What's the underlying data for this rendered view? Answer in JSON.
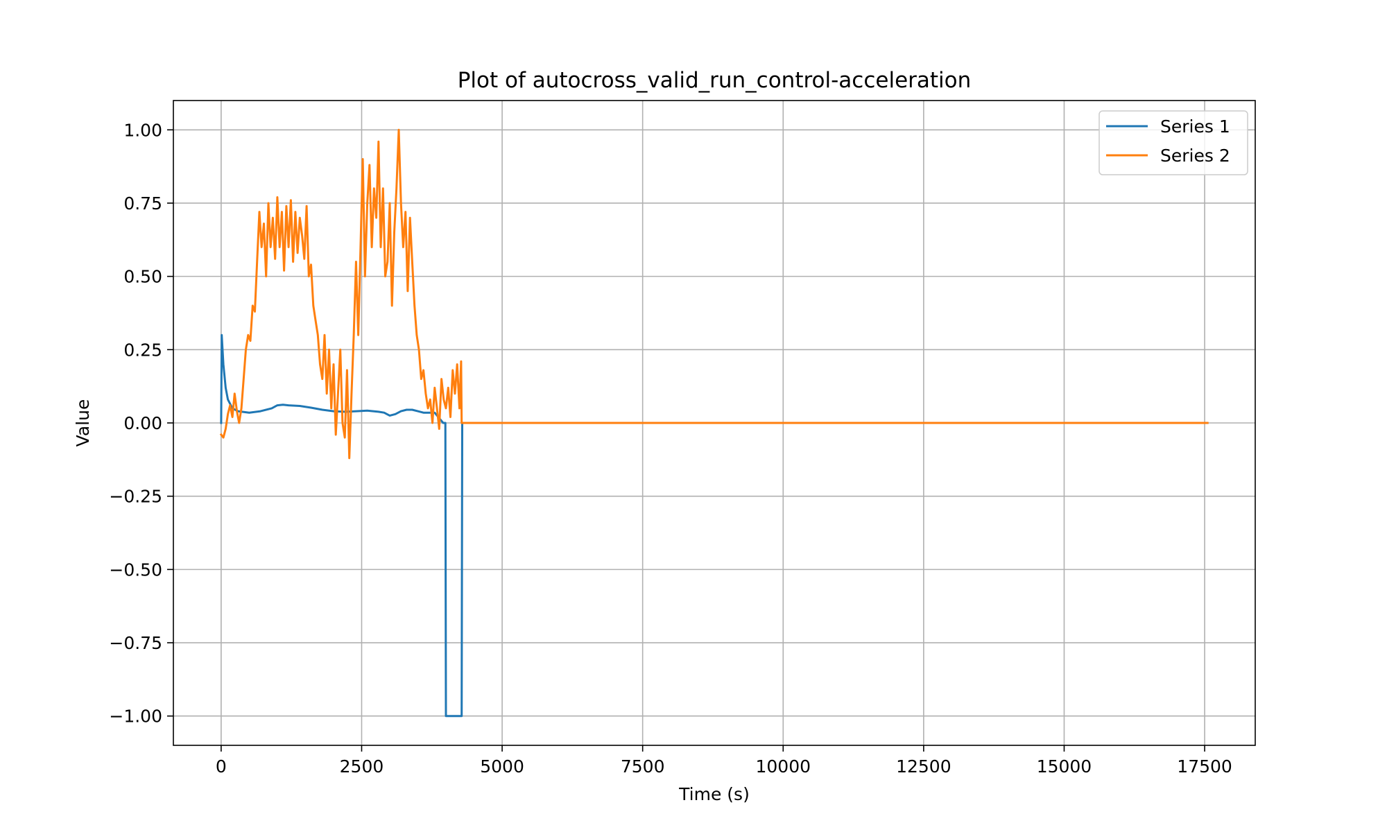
{
  "chart_data": {
    "type": "line",
    "title": "Plot of autocross_valid_run_control-acceleration",
    "xlabel": "Time (s)",
    "ylabel": "Value",
    "xlim": [
      -850,
      18400
    ],
    "ylim": [
      -1.1,
      1.1
    ],
    "xticks": [
      0,
      2500,
      5000,
      7500,
      10000,
      12500,
      15000,
      17500
    ],
    "xtick_labels": [
      "0",
      "2500",
      "5000",
      "7500",
      "10000",
      "12500",
      "15000",
      "17500"
    ],
    "yticks": [
      1.0,
      0.75,
      0.5,
      0.25,
      0.0,
      -0.25,
      -0.5,
      -0.75,
      -1.0
    ],
    "ytick_labels": [
      "1.00",
      "0.75",
      "0.50",
      "0.25",
      "0.00",
      "−0.25",
      "−0.50",
      "−0.75",
      "−1.00"
    ],
    "grid": true,
    "legend_position": "top-right",
    "colors": {
      "series1": "#1f77b4",
      "series2": "#ff7f0e",
      "grid": "#b0b0b0",
      "axes": "#000000"
    },
    "series": [
      {
        "name": "Series 1",
        "color": "#1f77b4",
        "x": [
          0,
          10,
          40,
          80,
          120,
          200,
          300,
          500,
          700,
          900,
          1000,
          1100,
          1200,
          1400,
          1600,
          1800,
          2000,
          2200,
          2400,
          2600,
          2800,
          2900,
          3000,
          3100,
          3200,
          3300,
          3400,
          3500,
          3600,
          3700,
          3800,
          3950,
          3990,
          4000,
          4280,
          4290,
          4300,
          5000,
          7500,
          10000,
          12500,
          15000,
          17500,
          17550
        ],
        "y": [
          0.0,
          0.3,
          0.2,
          0.12,
          0.08,
          0.05,
          0.04,
          0.035,
          0.04,
          0.05,
          0.06,
          0.062,
          0.06,
          0.058,
          0.052,
          0.045,
          0.04,
          0.038,
          0.04,
          0.042,
          0.038,
          0.035,
          0.025,
          0.03,
          0.04,
          0.045,
          0.045,
          0.04,
          0.035,
          0.035,
          0.035,
          0.0,
          0.0,
          -1.0,
          -1.0,
          0.0,
          0.0,
          0.0,
          0.0,
          0.0,
          0.0,
          0.0,
          0.0,
          0.0
        ]
      },
      {
        "name": "Series 2",
        "color": "#ff7f0e",
        "x": [
          0,
          40,
          80,
          120,
          160,
          200,
          240,
          280,
          320,
          360,
          400,
          440,
          480,
          520,
          560,
          600,
          640,
          680,
          720,
          760,
          800,
          840,
          880,
          920,
          960,
          1000,
          1040,
          1080,
          1120,
          1160,
          1200,
          1240,
          1280,
          1320,
          1360,
          1400,
          1440,
          1480,
          1520,
          1560,
          1600,
          1640,
          1680,
          1720,
          1760,
          1800,
          1840,
          1880,
          1920,
          1960,
          2000,
          2040,
          2080,
          2120,
          2160,
          2200,
          2240,
          2280,
          2320,
          2360,
          2400,
          2440,
          2480,
          2520,
          2560,
          2600,
          2640,
          2680,
          2720,
          2760,
          2800,
          2840,
          2880,
          2920,
          2960,
          3000,
          3040,
          3080,
          3120,
          3160,
          3200,
          3240,
          3280,
          3320,
          3360,
          3400,
          3440,
          3480,
          3520,
          3560,
          3600,
          3640,
          3680,
          3720,
          3760,
          3800,
          3840,
          3880,
          3920,
          3960,
          4000,
          4040,
          4080,
          4120,
          4160,
          4200,
          4240,
          4270,
          4280,
          4300,
          5000,
          7500,
          10000,
          12500,
          15000,
          17500,
          17550
        ],
        "y": [
          -0.04,
          -0.05,
          -0.02,
          0.03,
          0.06,
          0.02,
          0.1,
          0.04,
          0.0,
          0.05,
          0.15,
          0.25,
          0.3,
          0.28,
          0.4,
          0.38,
          0.55,
          0.72,
          0.6,
          0.68,
          0.5,
          0.75,
          0.6,
          0.7,
          0.56,
          0.77,
          0.6,
          0.72,
          0.52,
          0.74,
          0.6,
          0.76,
          0.55,
          0.72,
          0.58,
          0.7,
          0.64,
          0.56,
          0.74,
          0.5,
          0.54,
          0.4,
          0.35,
          0.3,
          0.2,
          0.15,
          0.3,
          0.1,
          0.25,
          0.05,
          0.2,
          -0.04,
          0.1,
          0.25,
          0.0,
          -0.05,
          0.18,
          -0.12,
          0.1,
          0.3,
          0.55,
          0.3,
          0.6,
          0.9,
          0.5,
          0.75,
          0.88,
          0.6,
          0.8,
          0.7,
          0.96,
          0.6,
          0.8,
          0.5,
          0.55,
          0.75,
          0.4,
          0.65,
          0.8,
          1.0,
          0.75,
          0.6,
          0.72,
          0.45,
          0.7,
          0.55,
          0.4,
          0.3,
          0.25,
          0.15,
          0.18,
          0.1,
          0.05,
          0.08,
          0.0,
          0.12,
          0.05,
          -0.02,
          0.15,
          0.08,
          0.05,
          0.12,
          0.02,
          0.18,
          0.1,
          0.2,
          0.05,
          0.21,
          0.0,
          0.0,
          0.0,
          0.0,
          0.0,
          0.0,
          0.0,
          0.0,
          0.0
        ]
      }
    ]
  }
}
